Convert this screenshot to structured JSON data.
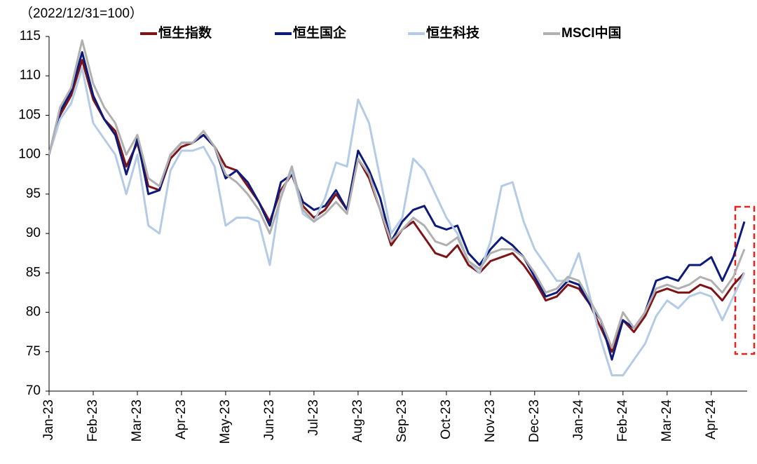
{
  "chart_data": {
    "type": "line",
    "subtitle": "（2022/12/31=100）",
    "categories": [
      "Jan-23",
      null,
      null,
      null,
      "Feb-23",
      null,
      null,
      null,
      "Mar-23",
      null,
      null,
      null,
      "Apr-23",
      null,
      null,
      null,
      "May-23",
      null,
      null,
      null,
      "Jun-23",
      null,
      null,
      null,
      "Jul-23",
      null,
      null,
      null,
      "Aug-23",
      null,
      null,
      null,
      "Sep-23",
      null,
      null,
      null,
      "Oct-23",
      null,
      null,
      null,
      "Nov-23",
      null,
      null,
      null,
      "Dec-23",
      null,
      null,
      null,
      "Jan-24",
      null,
      null,
      null,
      "Feb-24",
      null,
      null,
      null,
      "Mar-24",
      null,
      null,
      null,
      "Apr-24",
      null,
      null,
      null
    ],
    "series": [
      {
        "name": "恒生指数",
        "color": "#7f1416",
        "values": [
          100,
          105,
          107.5,
          112,
          107,
          104.5,
          103,
          98.5,
          101.5,
          96,
          95.5,
          99.5,
          101,
          101.5,
          102.5,
          101,
          98.5,
          98,
          96,
          94,
          91.5,
          95.5,
          97.5,
          93.5,
          92,
          93,
          95,
          93,
          99.5,
          97,
          93,
          88.5,
          90.5,
          91.5,
          89.5,
          87.5,
          87,
          88.5,
          86,
          85,
          86.5,
          87,
          87.5,
          86,
          84,
          81.5,
          82,
          83.5,
          83,
          81,
          78,
          75,
          79,
          77.5,
          79.5,
          82.5,
          83,
          82.5,
          82.5,
          83.5,
          83,
          81.5,
          83.5,
          85
        ]
      },
      {
        "name": "恒生国企",
        "color": "#0d1a7a",
        "values": [
          100,
          105.5,
          108,
          113,
          107.5,
          104.5,
          102.5,
          97.5,
          102,
          95,
          95.5,
          100,
          101.5,
          101.5,
          102.5,
          101,
          97,
          98,
          96.5,
          94,
          91,
          96.5,
          97.5,
          94,
          93,
          93.5,
          95.5,
          93,
          100.5,
          98,
          94.5,
          89,
          91.5,
          93,
          93.5,
          91,
          90.5,
          91,
          87.5,
          86,
          88,
          89.5,
          88.5,
          87,
          84.5,
          82,
          82.5,
          84,
          83.5,
          81,
          79,
          74,
          79,
          78,
          80,
          84,
          84.5,
          84,
          86,
          86,
          87,
          84,
          87,
          91.5
        ]
      },
      {
        "name": "恒生科技",
        "color": "#b4cbe6",
        "values": [
          100,
          104.5,
          106.5,
          111,
          104,
          102,
          100,
          95,
          100,
          91,
          90,
          98,
          100.5,
          100.5,
          101,
          98.5,
          91,
          92,
          92,
          91.5,
          86,
          95,
          98,
          92.5,
          91.5,
          94.5,
          99,
          98.5,
          107,
          104,
          97,
          90,
          92,
          99.5,
          98,
          95,
          92,
          90,
          86.5,
          85,
          89,
          96,
          96.5,
          91.5,
          88,
          86,
          84,
          84,
          87.5,
          82,
          76.5,
          72,
          72,
          74,
          76,
          79.5,
          81.5,
          80.5,
          82,
          82.5,
          82,
          79,
          82,
          85
        ]
      },
      {
        "name": "MSCI中国",
        "color": "#b0b0b0",
        "values": [
          100,
          106,
          108.5,
          114.5,
          109,
          106,
          104,
          100,
          102.5,
          97,
          96,
          100,
          101.5,
          101.5,
          103,
          101,
          97.5,
          96.5,
          95,
          93,
          90,
          94.5,
          98.5,
          93,
          91.5,
          92.5,
          94,
          92.5,
          99.5,
          97.5,
          93,
          89,
          90.5,
          92,
          91,
          89,
          88.5,
          89.5,
          86.5,
          85.5,
          87.5,
          88,
          88,
          87,
          85,
          82.5,
          83,
          84.5,
          84,
          81.5,
          79,
          75.5,
          80,
          78,
          80,
          83,
          83.5,
          83,
          83.5,
          84.5,
          84,
          82.5,
          84.5,
          88
        ]
      }
    ],
    "ylim": [
      70,
      115
    ],
    "yticks": [
      70,
      75,
      80,
      85,
      90,
      95,
      100,
      105,
      110,
      115
    ]
  }
}
